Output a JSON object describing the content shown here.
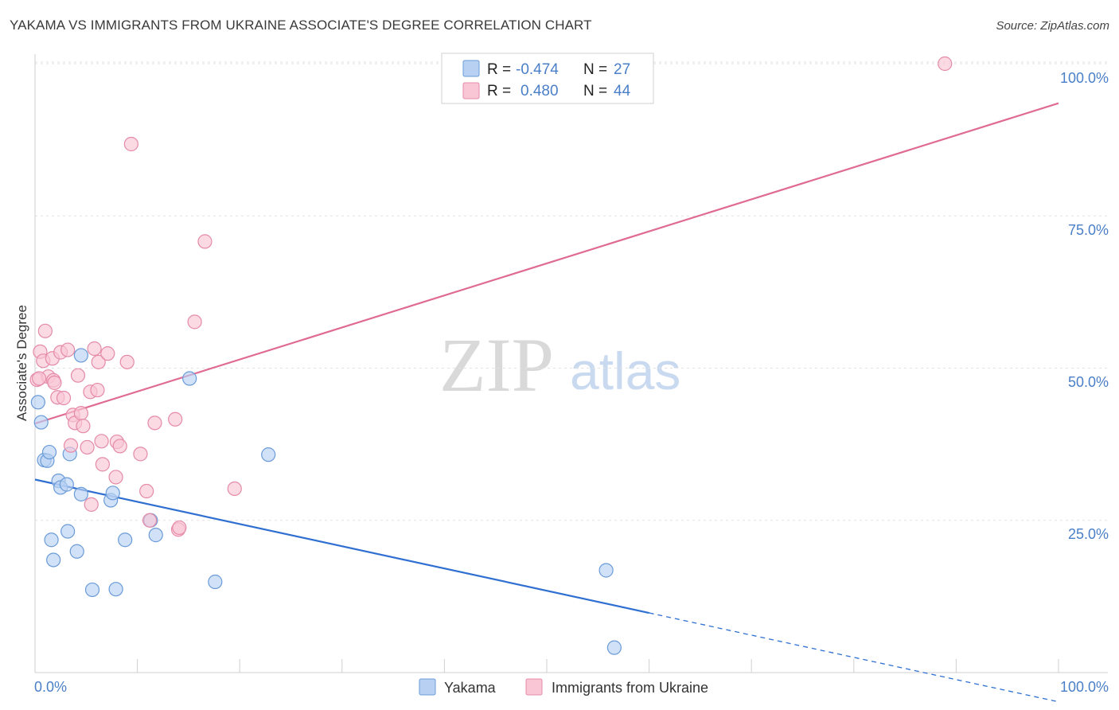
{
  "header": {
    "title": "YAKAMA VS IMMIGRANTS FROM UKRAINE ASSOCIATE'S DEGREE CORRELATION CHART",
    "source": "Source: ZipAtlas.com"
  },
  "watermark": {
    "part1": "ZIP",
    "part2": "atlas"
  },
  "legend": {
    "r_label": "R =",
    "n_label": "N =",
    "rows": [
      {
        "name": "Yakama",
        "r": "-0.474",
        "n": "27",
        "fill": "#b8d1f2",
        "stroke": "#6a9bd8"
      },
      {
        "name": "Immigrants from Ukraine",
        "r": "0.480",
        "n": "44",
        "fill": "#f9c6d5",
        "stroke": "#e58aa8"
      }
    ]
  },
  "chart_data": {
    "type": "scatter",
    "title": "YAKAMA VS IMMIGRANTS FROM UKRAINE ASSOCIATE'S DEGREE CORRELATION CHART",
    "xlabel": "",
    "ylabel": "Associate's Degree",
    "xlim": [
      0,
      100
    ],
    "ylim": [
      0,
      102
    ],
    "x_tick_labels": [
      "0.0%",
      "100.0%"
    ],
    "y_ticks": [
      25,
      50,
      75,
      100
    ],
    "y_tick_labels": [
      "25.0%",
      "50.0%",
      "75.0%",
      "100.0%"
    ],
    "grid": true,
    "series": [
      {
        "name": "Yakama",
        "color": "#6a9bd8",
        "fill": "#b8d1f2",
        "line_color": "#2f6fd1",
        "trend": {
          "x0": 0,
          "y0": 31.7,
          "x1": 60,
          "y1": 9.8,
          "dash_to_x": 100,
          "dash_to_y": -4.8
        },
        "points": [
          [
            0.3,
            44.4
          ],
          [
            0.6,
            41.1
          ],
          [
            0.9,
            34.9
          ],
          [
            1.2,
            34.8
          ],
          [
            1.4,
            36.2
          ],
          [
            1.6,
            21.8
          ],
          [
            1.8,
            18.5
          ],
          [
            2.3,
            31.5
          ],
          [
            2.5,
            30.4
          ],
          [
            3.1,
            30.9
          ],
          [
            3.2,
            23.2
          ],
          [
            3.4,
            35.9
          ],
          [
            4.1,
            19.9
          ],
          [
            4.5,
            29.3
          ],
          [
            5.6,
            13.6
          ],
          [
            7.4,
            28.3
          ],
          [
            7.6,
            29.5
          ],
          [
            7.9,
            13.7
          ],
          [
            8.8,
            21.8
          ],
          [
            11.3,
            25.0
          ],
          [
            11.8,
            22.6
          ],
          [
            15.1,
            48.3
          ],
          [
            17.6,
            14.9
          ],
          [
            22.8,
            35.8
          ],
          [
            4.5,
            52.1
          ],
          [
            55.8,
            16.8
          ],
          [
            56.6,
            4.1
          ]
        ]
      },
      {
        "name": "Immigrants from Ukraine",
        "color": "#e58aa8",
        "fill": "#f9c6d5",
        "line_color": "#e06b92",
        "trend": {
          "x0": 0,
          "y0": 40.9,
          "x1": 100,
          "y1": 93.5
        },
        "points": [
          [
            0.2,
            48.1
          ],
          [
            0.5,
            52.7
          ],
          [
            0.8,
            51.2
          ],
          [
            1.0,
            56.1
          ],
          [
            1.3,
            48.6
          ],
          [
            1.7,
            51.6
          ],
          [
            1.8,
            48.0
          ],
          [
            1.9,
            47.6
          ],
          [
            2.2,
            45.2
          ],
          [
            2.5,
            52.6
          ],
          [
            2.8,
            45.1
          ],
          [
            3.2,
            53.0
          ],
          [
            3.5,
            37.3
          ],
          [
            3.7,
            42.3
          ],
          [
            3.9,
            41.0
          ],
          [
            4.2,
            48.8
          ],
          [
            4.5,
            42.6
          ],
          [
            4.7,
            40.5
          ],
          [
            5.1,
            37.0
          ],
          [
            5.4,
            46.1
          ],
          [
            5.5,
            27.6
          ],
          [
            5.8,
            53.2
          ],
          [
            6.1,
            46.4
          ],
          [
            6.2,
            51.0
          ],
          [
            6.5,
            38.0
          ],
          [
            6.6,
            34.2
          ],
          [
            7.1,
            52.4
          ],
          [
            7.9,
            32.1
          ],
          [
            8.0,
            37.9
          ],
          [
            8.3,
            37.2
          ],
          [
            9.0,
            51.0
          ],
          [
            9.4,
            86.8
          ],
          [
            10.3,
            35.9
          ],
          [
            10.9,
            29.8
          ],
          [
            11.2,
            25.0
          ],
          [
            11.7,
            41.0
          ],
          [
            13.7,
            41.6
          ],
          [
            14.0,
            23.5
          ],
          [
            14.1,
            23.8
          ],
          [
            15.6,
            57.6
          ],
          [
            16.6,
            70.8
          ],
          [
            19.5,
            30.2
          ],
          [
            88.9,
            100.0
          ],
          [
            0.4,
            48.3
          ]
        ]
      }
    ]
  },
  "bottom_legend": [
    "Yakama",
    "Immigrants from Ukraine"
  ]
}
